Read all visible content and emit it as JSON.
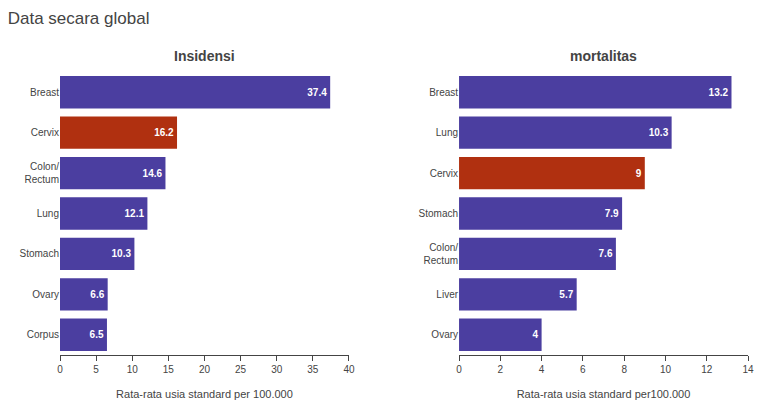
{
  "title": "Data secara global",
  "chart_data": [
    {
      "type": "bar",
      "orientation": "horizontal",
      "title": "Insidensi",
      "categories": [
        "Breast",
        "Cervix",
        "Colon/\nRectum",
        "Lung",
        "Stomach",
        "Ovary",
        "Corpus"
      ],
      "values": [
        37.4,
        16.2,
        14.6,
        12.1,
        10.3,
        6.6,
        6.5
      ],
      "colors": [
        "#4B3EA0",
        "#B03010",
        "#4B3EA0",
        "#4B3EA0",
        "#4B3EA0",
        "#4B3EA0",
        "#4B3EA0"
      ],
      "xlabel": "Rata-rata usia standard per 100.000",
      "xlim": [
        0,
        40
      ],
      "xticks": [
        0,
        5,
        10,
        15,
        20,
        25,
        30,
        35,
        40
      ],
      "data_labels": true,
      "grid": false
    },
    {
      "type": "bar",
      "orientation": "horizontal",
      "title": "mortalitas",
      "categories": [
        "Breast",
        "Lung",
        "Cervix",
        "Stomach",
        "Colon/\nRectum",
        "Liver",
        "Ovary"
      ],
      "values": [
        13.2,
        10.3,
        9.0,
        7.9,
        7.6,
        5.7,
        4.0
      ],
      "colors": [
        "#4B3EA0",
        "#4B3EA0",
        "#B03010",
        "#4B3EA0",
        "#4B3EA0",
        "#4B3EA0",
        "#4B3EA0"
      ],
      "xlabel": "Rata-rata usia standard per100.000",
      "xlim": [
        0,
        14
      ],
      "xticks": [
        0,
        2,
        4,
        6,
        8,
        10,
        12,
        14
      ],
      "data_labels": true,
      "grid": false
    }
  ]
}
